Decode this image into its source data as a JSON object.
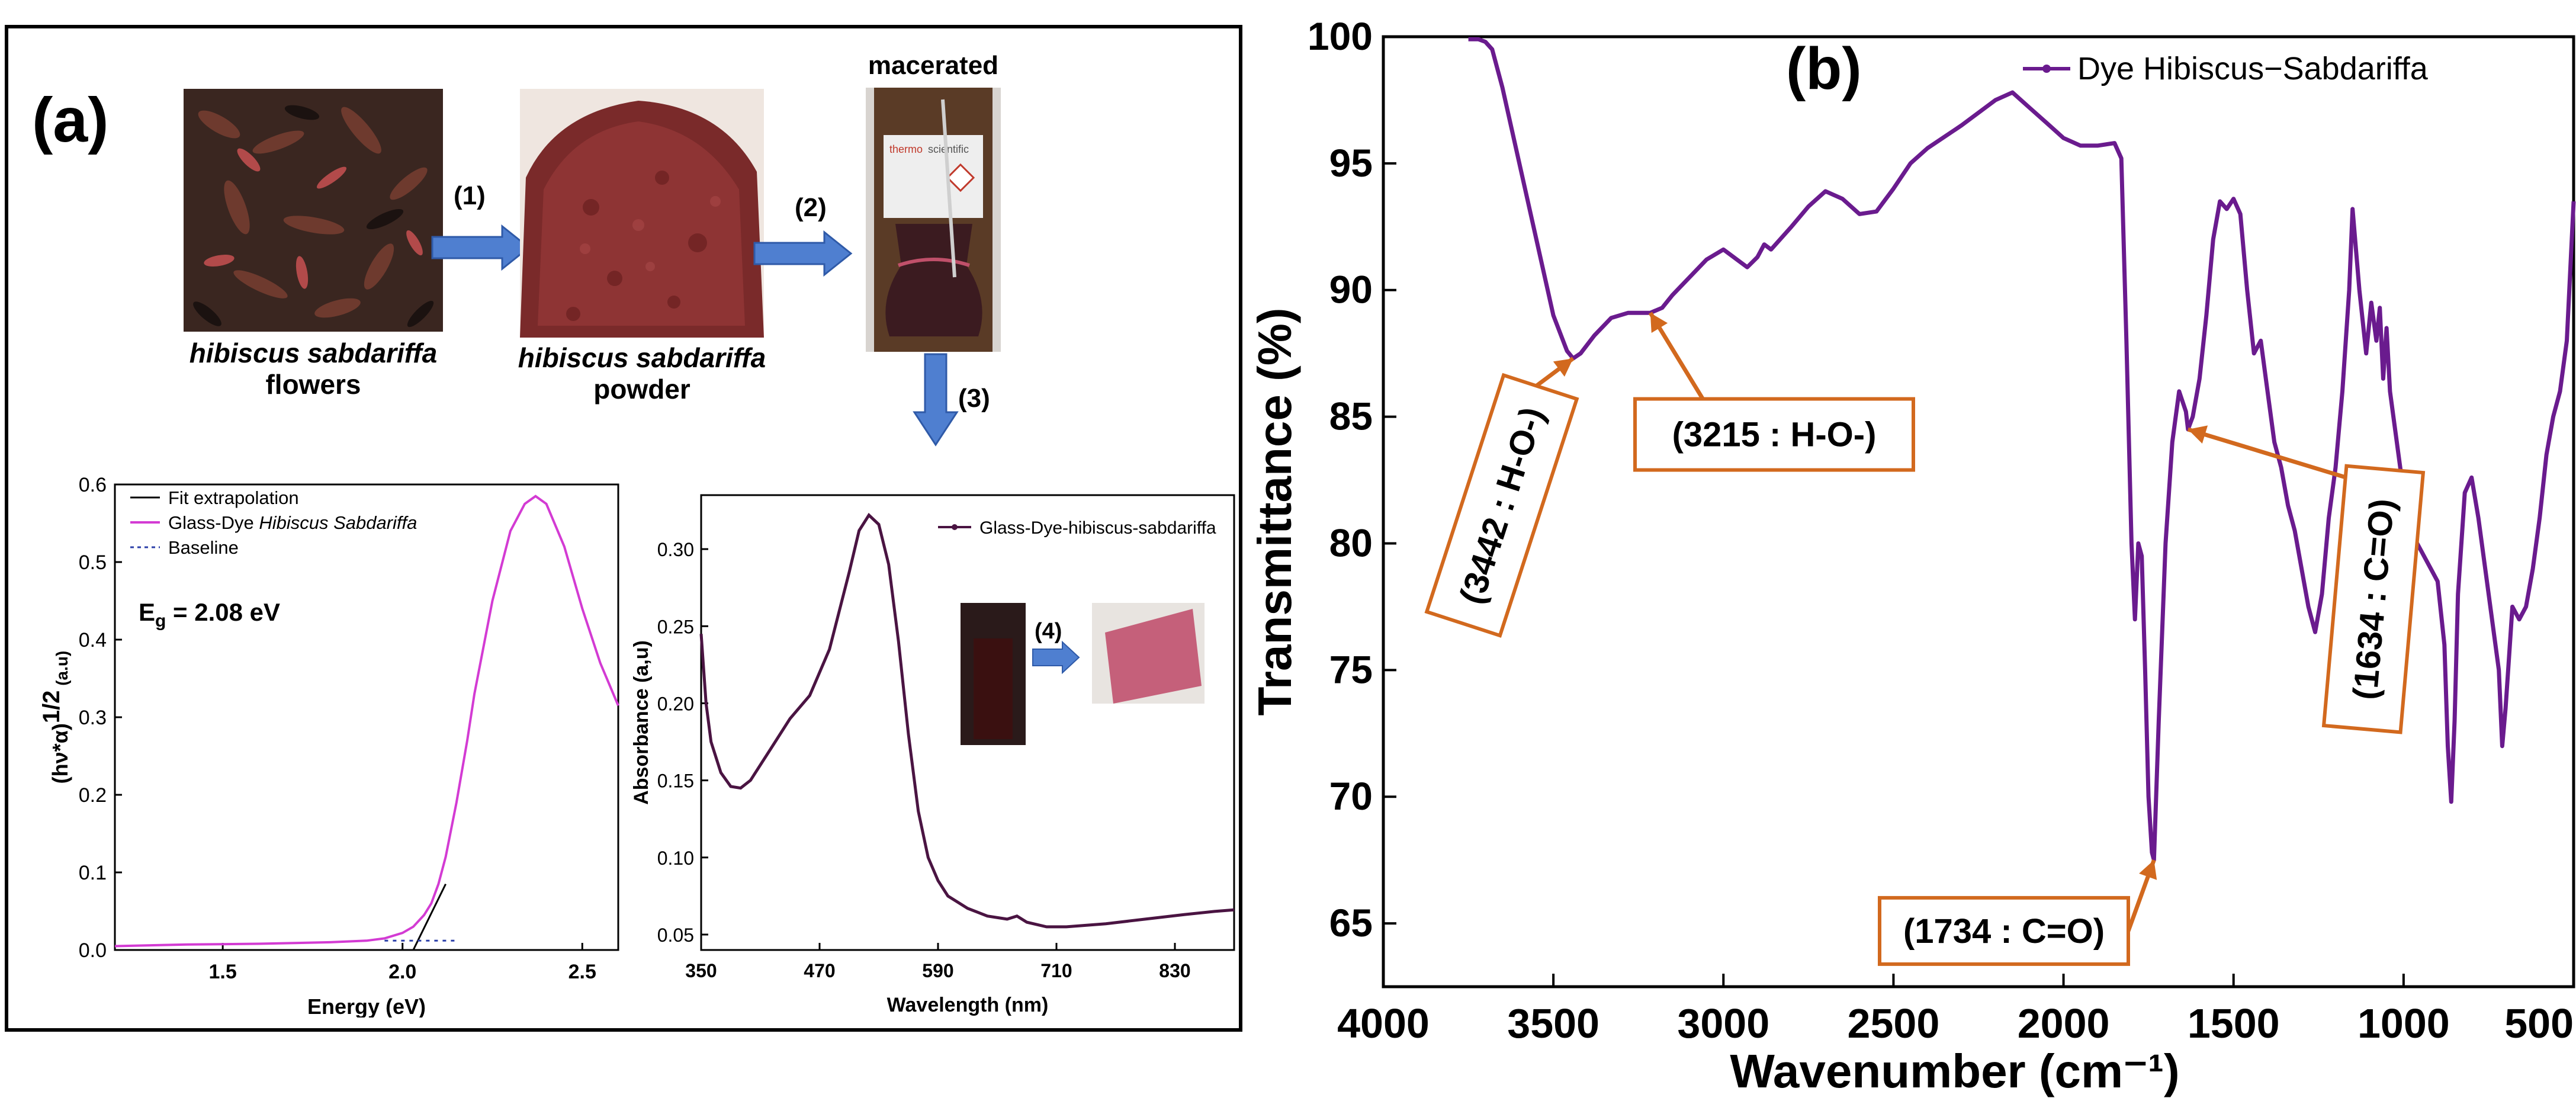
{
  "panel_a": {
    "label": "(a)",
    "process": {
      "flowers_caption_italic": "hibiscus sabdariffa",
      "flowers_caption": "flowers",
      "powder_caption_italic": "hibiscus sabdariffa",
      "powder_caption": "powder",
      "macerated_label": "macerated",
      "steps": [
        "(1)",
        "(2)",
        "(3)",
        "(4)"
      ]
    }
  },
  "colors": {
    "fit_line": "#000000",
    "glass_dye": "#d33bd3",
    "baseline": "#2b3fa8",
    "absorbance": "#4a1442",
    "ftir": "#6a1b8e",
    "arrow_blue": "#4f7fd0",
    "annotation_orange": "#d2691e"
  },
  "chart_data": [
    {
      "id": "tauc",
      "type": "line",
      "title": "",
      "xlabel": "Energy (eV)",
      "ylabel": "(hν*α)1/2 (a.u)",
      "ylabel_base": "(hν*α)",
      "ylabel_sup": "1/2",
      "ylabel_unit": "(a.u)",
      "xlim": [
        1.2,
        2.6
      ],
      "ylim": [
        0.0,
        0.6
      ],
      "xticks": [
        1.5,
        2.0,
        2.5
      ],
      "xtick_labels": [
        "1.5",
        "2.0",
        "2.5"
      ],
      "yticks": [
        0.0,
        0.1,
        0.2,
        0.3,
        0.4,
        0.5,
        0.6
      ],
      "ytick_labels": [
        "0.0",
        "0.1",
        "0.2",
        "0.3",
        "0.4",
        "0.5",
        "0.6"
      ],
      "annotation": {
        "prefix": "E",
        "sub": "g",
        "suffix": " = 2.08 eV"
      },
      "legend": [
        {
          "label": "Fit extrapolation",
          "style": "line-black"
        },
        {
          "label_plain": "Glass-Dye ",
          "label_italic": "Hibiscus Sabdariffa",
          "style": "line-magenta"
        },
        {
          "label": "Baseline",
          "style": "dashed-blue"
        }
      ],
      "series": [
        {
          "name": "Glass-Dye Hibiscus Sabdariffa",
          "x": [
            1.2,
            1.4,
            1.6,
            1.8,
            1.9,
            1.95,
            2.0,
            2.03,
            2.06,
            2.08,
            2.1,
            2.12,
            2.15,
            2.18,
            2.2,
            2.25,
            2.3,
            2.34,
            2.37,
            2.4,
            2.45,
            2.5,
            2.55,
            2.6
          ],
          "y": [
            0.005,
            0.007,
            0.008,
            0.01,
            0.012,
            0.015,
            0.022,
            0.03,
            0.045,
            0.06,
            0.085,
            0.12,
            0.19,
            0.27,
            0.33,
            0.45,
            0.54,
            0.575,
            0.585,
            0.575,
            0.52,
            0.44,
            0.37,
            0.315
          ]
        },
        {
          "name": "Fit extrapolation",
          "x": [
            2.03,
            2.12
          ],
          "y": [
            0.0,
            0.085
          ]
        },
        {
          "name": "Baseline",
          "x": [
            1.95,
            2.15
          ],
          "y": [
            0.012,
            0.012
          ]
        }
      ]
    },
    {
      "id": "absorbance",
      "type": "line",
      "title": "",
      "xlabel": "Wavelength (nm)",
      "ylabel": "Absorbance (a,u)",
      "xlim": [
        350,
        890
      ],
      "ylim": [
        0.04,
        0.335
      ],
      "xticks": [
        350,
        470,
        590,
        710,
        830
      ],
      "xtick_labels": [
        "350",
        "470",
        "590",
        "710",
        "830"
      ],
      "yticks": [
        0.05,
        0.1,
        0.15,
        0.2,
        0.25,
        0.3
      ],
      "ytick_labels": [
        "0.05",
        "0.10",
        "0.15",
        "0.20",
        "0.25",
        "0.30"
      ],
      "legend": [
        {
          "label": "Glass-Dye-hibiscus-sabdariffa",
          "style": "line-dot"
        }
      ],
      "series": [
        {
          "name": "Glass-Dye-hibiscus-sabdariffa",
          "x": [
            350,
            355,
            360,
            370,
            380,
            390,
            400,
            420,
            440,
            460,
            480,
            500,
            510,
            520,
            530,
            540,
            550,
            560,
            570,
            580,
            590,
            600,
            620,
            640,
            660,
            670,
            680,
            700,
            720,
            760,
            800,
            840,
            870,
            890
          ],
          "y": [
            0.245,
            0.2,
            0.175,
            0.155,
            0.146,
            0.145,
            0.15,
            0.17,
            0.19,
            0.205,
            0.235,
            0.285,
            0.312,
            0.322,
            0.316,
            0.29,
            0.24,
            0.18,
            0.13,
            0.1,
            0.085,
            0.075,
            0.067,
            0.062,
            0.06,
            0.062,
            0.058,
            0.055,
            0.055,
            0.057,
            0.06,
            0.063,
            0.065,
            0.066
          ]
        }
      ]
    },
    {
      "id": "ftir",
      "type": "line",
      "panel_label": "(b)",
      "title": "",
      "xlabel": "Wavenumber (cm⁻¹)",
      "ylabel": "Transmittance (%)",
      "xlim": [
        4000,
        500
      ],
      "ylim": [
        62.5,
        100
      ],
      "xticks": [
        4000,
        3500,
        3000,
        2500,
        2000,
        1500,
        1000,
        500
      ],
      "xtick_labels": [
        "4000",
        "3500",
        "3000",
        "2500",
        "2000",
        "1500",
        "1000",
        "500"
      ],
      "yticks": [
        65,
        70,
        75,
        80,
        85,
        90,
        95,
        100
      ],
      "ytick_labels": [
        "65",
        "70",
        "75",
        "80",
        "85",
        "90",
        "95",
        "100"
      ],
      "legend": [
        {
          "label": "Dye Hibiscus−Sabdariffa",
          "style": "line-dot"
        }
      ],
      "annotations": [
        {
          "text": "(3442 : H-O-)",
          "peak_x": 3442,
          "peak_y": 87.3,
          "rotated": true
        },
        {
          "text": "(3215 : H-O-)",
          "peak_x": 3215,
          "peak_y": 89.1,
          "rotated": false
        },
        {
          "text": "(1734 : C=O)",
          "peak_x": 1734,
          "peak_y": 67.5,
          "rotated": false
        },
        {
          "text": "(1634 : C=O)",
          "peak_x": 1634,
          "peak_y": 84.5,
          "rotated": true
        }
      ],
      "series": [
        {
          "name": "Dye Hibiscus−Sabdariffa",
          "x": [
            3750,
            3720,
            3700,
            3680,
            3650,
            3600,
            3550,
            3500,
            3460,
            3442,
            3420,
            3380,
            3330,
            3280,
            3250,
            3215,
            3180,
            3150,
            3100,
            3050,
            3000,
            2960,
            2930,
            2900,
            2880,
            2860,
            2800,
            2750,
            2700,
            2650,
            2600,
            2550,
            2500,
            2450,
            2400,
            2300,
            2200,
            2150,
            2100,
            2050,
            2000,
            1950,
            1900,
            1850,
            1830,
            1815,
            1800,
            1790,
            1780,
            1770,
            1760,
            1750,
            1740,
            1734,
            1720,
            1700,
            1680,
            1660,
            1640,
            1634,
            1620,
            1600,
            1580,
            1560,
            1540,
            1520,
            1500,
            1480,
            1460,
            1440,
            1420,
            1400,
            1380,
            1360,
            1340,
            1320,
            1300,
            1280,
            1260,
            1240,
            1220,
            1200,
            1180,
            1160,
            1150,
            1130,
            1110,
            1095,
            1080,
            1070,
            1060,
            1050,
            1040,
            1020,
            1000,
            980,
            960,
            940,
            920,
            900,
            880,
            870,
            860,
            850,
            840,
            820,
            800,
            780,
            760,
            740,
            720,
            710,
            700,
            690,
            680,
            660,
            640,
            620,
            600,
            580,
            560,
            540,
            520,
            500
          ],
          "y": [
            99.9,
            99.9,
            99.8,
            99.5,
            98,
            95,
            92,
            89,
            87.6,
            87.3,
            87.5,
            88.2,
            88.9,
            89.1,
            89.1,
            89.1,
            89.3,
            89.8,
            90.5,
            91.2,
            91.6,
            91.2,
            90.9,
            91.3,
            91.8,
            91.6,
            92.5,
            93.3,
            93.9,
            93.6,
            93,
            93.1,
            94,
            95,
            95.6,
            96.5,
            97.5,
            97.8,
            97.2,
            96.6,
            96,
            95.7,
            95.7,
            95.8,
            95.2,
            88,
            80,
            77,
            80,
            79.5,
            75,
            70,
            67.8,
            67.5,
            73,
            80,
            84,
            86,
            85.2,
            84.5,
            85,
            86.5,
            89,
            92,
            93.5,
            93.2,
            93.6,
            93,
            90,
            87.5,
            88,
            86,
            84,
            83,
            81.5,
            80.5,
            79,
            77.5,
            76.5,
            78,
            81,
            83,
            86,
            90,
            93.2,
            90,
            87.5,
            89.5,
            88,
            89.3,
            86.5,
            88.5,
            86,
            84,
            82,
            80.5,
            80,
            79.5,
            79,
            78.5,
            76,
            72,
            69.8,
            73,
            78,
            82,
            82.6,
            81,
            79,
            77,
            75,
            72,
            73.5,
            75.5,
            77.5,
            77,
            77.5,
            79,
            81,
            83.5,
            85,
            86,
            88,
            93.5
          ]
        }
      ]
    }
  ]
}
